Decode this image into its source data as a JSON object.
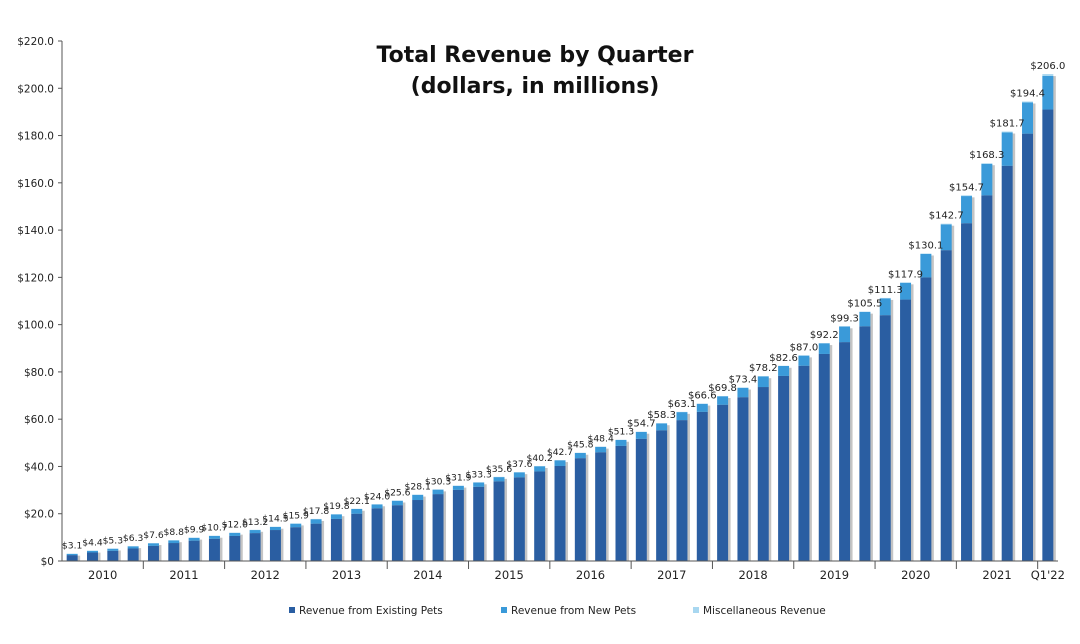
{
  "chart_data": {
    "type": "bar",
    "stacked": true,
    "title": "Total Revenue by Quarter",
    "subtitle": "(dollars, in millions)",
    "ylim": [
      0,
      220
    ],
    "y_ticks": [
      "$0",
      "$20.0",
      "$40.0",
      "$60.0",
      "$80.0",
      "$100.0",
      "$120.0",
      "$140.0",
      "$160.0",
      "$180.0",
      "$200.0",
      "$220.0"
    ],
    "y_tick_values": [
      0,
      20,
      40,
      60,
      80,
      100,
      120,
      140,
      160,
      180,
      200,
      220
    ],
    "year_labels": [
      "2010",
      "2011",
      "2012",
      "2013",
      "2014",
      "2015",
      "2016",
      "2017",
      "2018",
      "2019",
      "2020",
      "2021",
      "Q1'22"
    ],
    "year_bar_counts": [
      4,
      4,
      4,
      4,
      4,
      4,
      4,
      4,
      4,
      4,
      4,
      4,
      1
    ],
    "totals": [
      3.1,
      4.4,
      5.3,
      6.3,
      7.6,
      8.8,
      9.9,
      10.7,
      12.0,
      13.2,
      14.5,
      15.9,
      17.8,
      19.8,
      22.1,
      24.0,
      25.6,
      28.1,
      30.3,
      31.9,
      33.3,
      35.6,
      37.6,
      40.2,
      42.7,
      45.8,
      48.4,
      51.3,
      54.7,
      58.3,
      63.1,
      66.6,
      69.8,
      73.4,
      78.2,
      82.6,
      87.0,
      92.2,
      99.3,
      105.5,
      111.3,
      117.9,
      130.1,
      142.7,
      154.7,
      168.3,
      181.7,
      194.4,
      206.0
    ],
    "data_labels": [
      "$3.1",
      "$4.4",
      "$5.3",
      "$6.3",
      "$7.6",
      "$8.8",
      "$9.9",
      "$10.7",
      "$12.0",
      "$13.2",
      "$14.5",
      "$15.9",
      "$17.8",
      "$19.8",
      "$22.1",
      "$24.0",
      "$25.6",
      "$28.1",
      "$30.3",
      "$31.9",
      "$33.3",
      "$35.6",
      "$37.6",
      "$40.2",
      "$42.7",
      "$45.8",
      "$48.4",
      "$51.3",
      "$54.7",
      "$58.3",
      "$63.1",
      "$66.6",
      "$69.8",
      "$73.4",
      "$78.2",
      "$82.6",
      "$87.0",
      "$92.2",
      "$99.3",
      "$105.5",
      "$111.3",
      "$117.9",
      "$130.1",
      "$142.7",
      "$154.7",
      "$168.3",
      "$181.7",
      "$194.4",
      "$206.0"
    ],
    "series": [
      {
        "name": "Revenue from Existing Pets",
        "color": "#2a5ea2",
        "values": [
          2.5,
          3.6,
          4.3,
          5.3,
          6.4,
          7.6,
          8.6,
          9.4,
          10.6,
          11.8,
          13.1,
          14.3,
          15.8,
          17.8,
          20.0,
          22.3,
          23.6,
          25.8,
          28.3,
          30.1,
          31.4,
          33.7,
          35.4,
          37.9,
          40.2,
          43.5,
          46.0,
          48.7,
          51.7,
          55.3,
          59.6,
          63.1,
          66.1,
          69.3,
          73.6,
          78.3,
          82.6,
          87.6,
          92.6,
          99.3,
          104.0,
          110.6,
          120.0,
          131.5,
          142.9,
          154.7,
          167.2,
          180.8,
          191.0
        ]
      },
      {
        "name": "Revenue from New Pets",
        "color": "#3a9ad9",
        "values": [
          0.5,
          0.7,
          0.9,
          0.9,
          1.1,
          1.1,
          1.2,
          1.2,
          1.3,
          1.3,
          1.3,
          1.5,
          1.9,
          1.9,
          2.0,
          1.6,
          1.9,
          2.2,
          1.9,
          1.7,
          1.8,
          1.8,
          2.1,
          2.2,
          2.4,
          2.2,
          2.3,
          2.5,
          2.9,
          2.9,
          3.4,
          3.4,
          3.6,
          4.0,
          4.5,
          4.2,
          4.3,
          4.5,
          6.6,
          6.1,
          7.1,
          7.1,
          9.9,
          10.9,
          11.5,
          13.3,
          14.1,
          13.2,
          14.2
        ]
      },
      {
        "name": "Miscellaneous Revenue",
        "color": "#a8d7f0",
        "values": [
          0.1,
          0.1,
          0.1,
          0.1,
          0.1,
          0.1,
          0.1,
          0.1,
          0.1,
          0.1,
          0.1,
          0.1,
          0.1,
          0.1,
          0.1,
          0.1,
          0.1,
          0.1,
          0.1,
          0.1,
          0.1,
          0.1,
          0.1,
          0.1,
          0.1,
          0.1,
          0.1,
          0.1,
          0.1,
          0.1,
          0.1,
          0.1,
          0.1,
          0.1,
          0.1,
          0.1,
          0.1,
          0.1,
          0.1,
          0.1,
          0.2,
          0.2,
          0.2,
          0.3,
          0.3,
          0.3,
          0.4,
          0.4,
          0.8
        ]
      }
    ],
    "legend_position": "bottom",
    "grid": false
  },
  "colors": {
    "existing": "#2a5ea2",
    "new": "#3a9ad9",
    "misc": "#a8d7f0",
    "shadow": "#c4c4c4"
  }
}
